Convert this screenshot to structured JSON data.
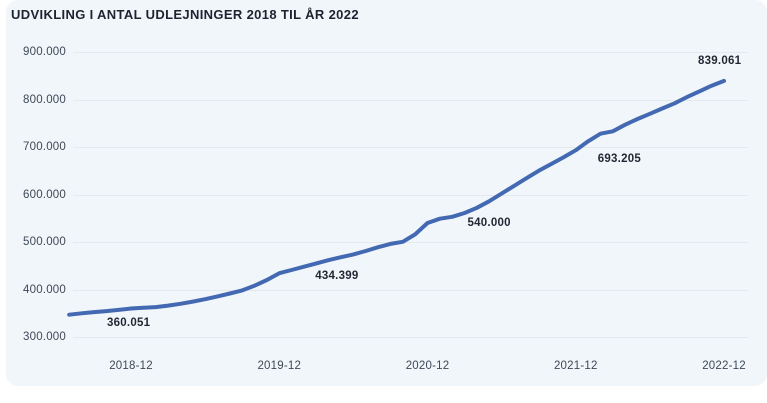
{
  "title": "UDVIKLING I ANTAL UDLEJNINGER 2018 TIL ÅR 2022",
  "colors": {
    "page_bg": "#ffffff",
    "card_bg": "#f1f6fa",
    "line": "#4269b2",
    "grid": "#e3e9ef",
    "title_text": "#1c2431",
    "axis_text": "#3d4957",
    "data_label_text": "#1f2733"
  },
  "chart_data": {
    "type": "line",
    "title": "UDVIKLING I ANTAL UDLEJNINGER 2018 TIL ÅR 2022",
    "xlabel": "",
    "ylabel": "",
    "ylim": [
      300000,
      900000
    ],
    "grid": true,
    "legend": false,
    "y_ticks": [
      {
        "value": 900000,
        "label": "900.000"
      },
      {
        "value": 800000,
        "label": "800.000"
      },
      {
        "value": 700000,
        "label": "700.000"
      },
      {
        "value": 600000,
        "label": "600.000"
      },
      {
        "value": 500000,
        "label": "500.000"
      },
      {
        "value": 400000,
        "label": "400.000"
      },
      {
        "value": 300000,
        "label": "300.000"
      }
    ],
    "x_ticks": [
      "2018-12",
      "2019-12",
      "2020-12",
      "2021-12",
      "2022-12"
    ],
    "x": [
      "2018-07",
      "2018-08",
      "2018-09",
      "2018-10",
      "2018-11",
      "2018-12",
      "2019-01",
      "2019-02",
      "2019-03",
      "2019-04",
      "2019-05",
      "2019-06",
      "2019-07",
      "2019-08",
      "2019-09",
      "2019-10",
      "2019-11",
      "2019-12",
      "2020-01",
      "2020-02",
      "2020-03",
      "2020-04",
      "2020-05",
      "2020-06",
      "2020-07",
      "2020-08",
      "2020-09",
      "2020-10",
      "2020-11",
      "2020-12",
      "2021-01",
      "2021-02",
      "2021-03",
      "2021-04",
      "2021-05",
      "2021-06",
      "2021-07",
      "2021-08",
      "2021-09",
      "2021-10",
      "2021-11",
      "2021-12",
      "2022-01",
      "2022-02",
      "2022-03",
      "2022-04",
      "2022-05",
      "2022-06",
      "2022-07",
      "2022-08",
      "2022-09",
      "2022-10",
      "2022-11",
      "2022-12"
    ],
    "values": [
      347000,
      350000,
      352500,
      354500,
      357000,
      360051,
      361500,
      363000,
      366000,
      370000,
      374500,
      379500,
      385500,
      391500,
      398000,
      408000,
      420000,
      434399,
      441000,
      448000,
      455000,
      462000,
      468000,
      474000,
      481000,
      489000,
      496000,
      500500,
      516000,
      540000,
      549000,
      553000,
      561000,
      572000,
      586000,
      602000,
      618000,
      634000,
      650000,
      664000,
      678000,
      693205,
      712000,
      728000,
      733000,
      747000,
      759000,
      770000,
      781000,
      792000,
      805000,
      817000,
      829000,
      839061
    ],
    "annotations": [
      {
        "x": "2018-12",
        "value": 360051,
        "label": "360.051"
      },
      {
        "x": "2019-12",
        "value": 434399,
        "label": "434.399"
      },
      {
        "x": "2020-12",
        "value": 540000,
        "label": "540.000"
      },
      {
        "x": "2021-12",
        "value": 693205,
        "label": "693.205"
      },
      {
        "x": "2022-12",
        "value": 839061,
        "label": "839.061"
      }
    ]
  }
}
